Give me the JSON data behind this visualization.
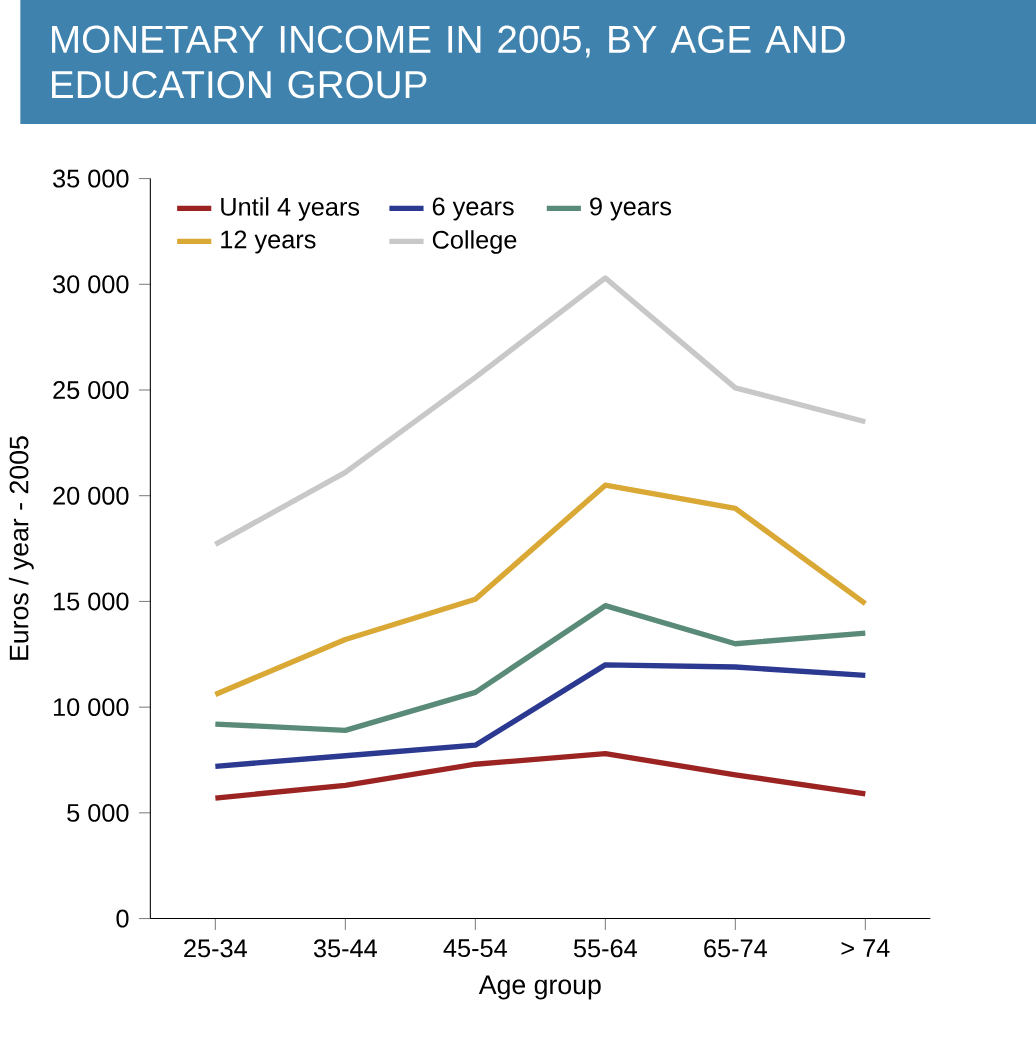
{
  "chart_data": {
    "type": "line",
    "title": "MONETARY INCOME IN 2005, BY AGE AND EDUCATION GROUP",
    "xlabel": "Age group",
    "ylabel": "Euros / year - 2005",
    "categories": [
      "25-34",
      "35-44",
      "45-54",
      "55-64",
      "65-74",
      "> 74"
    ],
    "series": [
      {
        "name": "Until 4 years",
        "color": "#9b2423",
        "values": [
          5700,
          6300,
          7300,
          7800,
          6800,
          5900
        ]
      },
      {
        "name": "6 years",
        "color": "#2b3990",
        "values": [
          7200,
          7700,
          8200,
          12000,
          11900,
          11500
        ]
      },
      {
        "name": "9 years",
        "color": "#5a8a78",
        "values": [
          9200,
          8900,
          10700,
          14800,
          13000,
          13500
        ]
      },
      {
        "name": "12 years",
        "color": "#d9a835",
        "values": [
          10600,
          13200,
          15100,
          20500,
          19400,
          14900
        ]
      },
      {
        "name": "College",
        "color": "#c8c8c8",
        "values": [
          17700,
          21100,
          25600,
          30300,
          25100,
          23500
        ]
      }
    ],
    "ylim": [
      0,
      35000
    ],
    "yticks": [
      0,
      {
        "value": 5000,
        "label": "5 000"
      },
      {
        "value": 10000,
        "label": "10 000"
      },
      {
        "value": 15000,
        "label": "15 000"
      },
      {
        "value": 20000,
        "label": "20 000"
      },
      {
        "value": 25000,
        "label": "25 000"
      },
      {
        "value": 30000,
        "label": "30 000"
      },
      {
        "value": 35000,
        "label": "35 000"
      }
    ],
    "legend": "top left",
    "grid": false,
    "marker": "none",
    "line_style": "solid"
  }
}
